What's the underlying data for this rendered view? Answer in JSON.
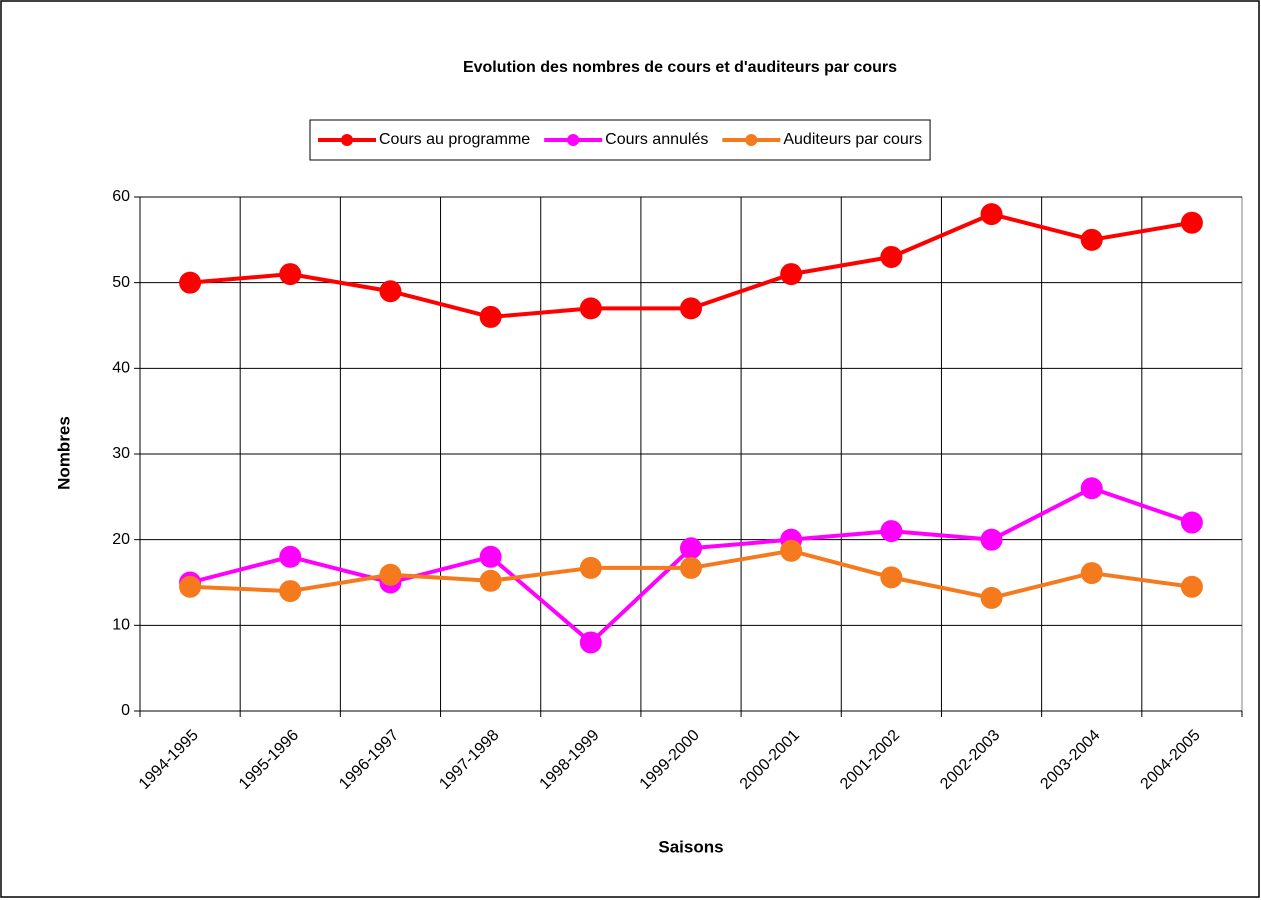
{
  "chart_data": {
    "type": "line",
    "title": "Evolution des nombres de cours et d'auditeurs par cours",
    "x_label": "Saisons",
    "y_label": "Nombres",
    "categories": [
      "1994-1995",
      "1995-1996",
      "1996-1997",
      "1997-1998",
      "1998-1999",
      "1999-2000",
      "2000-2001",
      "2001-2002",
      "2002-2003",
      "2003-2004",
      "2004-2005"
    ],
    "series": [
      {
        "name": "Cours au programme",
        "color": "#ff0000",
        "values": [
          50,
          51,
          49,
          46,
          47,
          47,
          51,
          53,
          58,
          55,
          57
        ]
      },
      {
        "name": "Cours annulés",
        "color": "#ff00ff",
        "values": [
          15,
          18,
          15,
          18,
          8,
          19,
          20,
          21,
          20,
          26,
          22
        ]
      },
      {
        "name": "Auditeurs par cours",
        "color": "#f57a1e",
        "values": [
          14.5,
          14,
          15.9,
          15.2,
          16.7,
          16.7,
          18.7,
          15.6,
          13.2,
          16.1,
          14.5
        ]
      }
    ],
    "ylim": [
      0,
      60
    ],
    "yticks": [
      0,
      10,
      20,
      30,
      40,
      50,
      60
    ],
    "grid": true,
    "legend": "top"
  }
}
